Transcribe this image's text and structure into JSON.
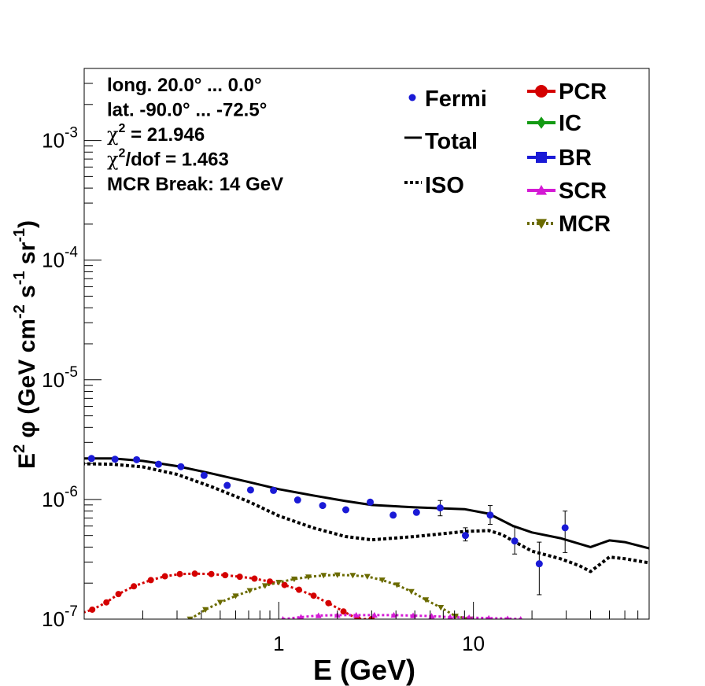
{
  "chart_data": {
    "type": "scatter",
    "xlabel": "E (GeV)",
    "ylabel_parts": [
      "E",
      "2",
      "φ (GeV cm",
      "-2",
      " s",
      "-1",
      " sr",
      "-1",
      ")"
    ],
    "xscale": "log",
    "yscale": "log",
    "xlim": [
      0.1,
      80
    ],
    "ylim": [
      1e-07,
      0.004
    ],
    "x_ticks": [
      {
        "value": 1,
        "label": "1"
      },
      {
        "value": 10,
        "label": "10"
      }
    ],
    "y_ticks": [
      {
        "value": 1e-07,
        "base": "10",
        "exp": "-7"
      },
      {
        "value": 1e-06,
        "base": "10",
        "exp": "-6"
      },
      {
        "value": 1e-05,
        "base": "10",
        "exp": "-5"
      },
      {
        "value": 0.0001,
        "base": "10",
        "exp": "-4"
      },
      {
        "value": 0.001,
        "base": "10",
        "exp": "-3"
      }
    ],
    "info": {
      "lines": [
        {
          "text": "long. 20.0° ... 0.0°"
        },
        {
          "text": "lat. -90.0° ... -72.5°"
        },
        {
          "sym": "χ",
          "sup": "2",
          "text": " = 21.946"
        },
        {
          "sym": "χ",
          "sup": "2",
          "text": "/dof = 1.463"
        },
        {
          "text": "MCR Break: 14 GeV"
        }
      ]
    },
    "legend": {
      "position": "top-right",
      "left": [
        {
          "name": "Fermi",
          "style": "point",
          "color": "#1a1ad6"
        },
        {
          "name": "Total",
          "style": "solid",
          "color": "#000000"
        },
        {
          "name": "ISO",
          "style": "dotted",
          "color": "#000000"
        }
      ],
      "right": [
        {
          "name": "PCR",
          "style": "circle",
          "color": "#d40000"
        },
        {
          "name": "IC",
          "style": "diamond",
          "color": "#139a13"
        },
        {
          "name": "BR",
          "style": "square",
          "color": "#1a1ad6"
        },
        {
          "name": "SCR",
          "style": "triangle-up",
          "color": "#d41ad4"
        },
        {
          "name": "MCR",
          "style": "triangle-down",
          "color": "#6b6b00"
        }
      ]
    },
    "fermi": {
      "color": "#1a1ad6",
      "points": [
        {
          "x": 0.109,
          "y": 2.2e-06
        },
        {
          "x": 0.144,
          "y": 2.17e-06
        },
        {
          "x": 0.186,
          "y": 2.15e-06
        },
        {
          "x": 0.241,
          "y": 1.97e-06
        },
        {
          "x": 0.314,
          "y": 1.88e-06
        },
        {
          "x": 0.413,
          "y": 1.59e-06
        },
        {
          "x": 0.543,
          "y": 1.31e-06
        },
        {
          "x": 0.716,
          "y": 1.2e-06
        },
        {
          "x": 0.939,
          "y": 1.19e-06
        },
        {
          "x": 1.25,
          "y": 9.9e-07
        },
        {
          "x": 1.68,
          "y": 8.9e-07
        },
        {
          "x": 2.21,
          "y": 8.2e-07
        },
        {
          "x": 2.95,
          "y": 9.5e-07
        },
        {
          "x": 3.87,
          "y": 7.4e-07
        },
        {
          "x": 5.1,
          "y": 7.8e-07
        },
        {
          "x": 6.75,
          "y": 8.5e-07,
          "err": [
            7.3e-07,
            9.8e-07
          ]
        },
        {
          "x": 9.1,
          "y": 5e-07,
          "err": [
            4.5e-07,
            5.8e-07
          ]
        },
        {
          "x": 12.2,
          "y": 7.4e-07,
          "err": [
            6.2e-07,
            8.9e-07
          ]
        },
        {
          "x": 16.3,
          "y": 4.5e-07,
          "err": [
            3.5e-07,
            5.9e-07
          ]
        },
        {
          "x": 21.8,
          "y": 2.9e-07,
          "err": [
            1.6e-07,
            4.4e-07
          ]
        },
        {
          "x": 29.6,
          "y": 5.8e-07,
          "err": [
            3.6e-07,
            8e-07
          ]
        }
      ]
    },
    "series": [
      {
        "name": "Total",
        "style": "solid",
        "color": "#000000",
        "x": [
          0.08,
          0.14,
          0.2,
          0.3,
          0.45,
          0.7,
          1.0,
          1.5,
          2.2,
          3.0,
          5.0,
          9.0,
          12.0,
          16.0,
          20.0,
          28.0,
          40.0,
          50.0,
          60.0,
          80.0
        ],
        "y": [
          2.2e-06,
          2.2e-06,
          2.1e-06,
          1.9e-06,
          1.65e-06,
          1.4e-06,
          1.22e-06,
          1.08e-06,
          9.7e-07,
          9e-07,
          8.6e-07,
          8.3e-07,
          7.6e-07,
          6e-07,
          5.3e-07,
          4.75e-07,
          4e-07,
          4.55e-07,
          4.4e-07,
          3.9e-07
        ]
      },
      {
        "name": "ISO",
        "style": "dotted",
        "color": "#000000",
        "x": [
          0.08,
          0.14,
          0.2,
          0.3,
          0.45,
          0.7,
          1.0,
          1.5,
          2.2,
          3.0,
          5.0,
          9.0,
          12.0,
          14.0,
          16.0,
          20.0,
          28.0,
          35.0,
          40.0,
          50.0,
          60.0,
          80.0
        ],
        "y": [
          2e-06,
          1.97e-06,
          1.87e-06,
          1.62e-06,
          1.28e-06,
          9.6e-07,
          7.3e-07,
          5.8e-07,
          4.9e-07,
          4.6e-07,
          4.9e-07,
          5.4e-07,
          5.5e-07,
          5.1e-07,
          4.5e-07,
          3.7e-07,
          3.2e-07,
          2.8e-07,
          2.5e-07,
          3.3e-07,
          3.2e-07,
          2.95e-07
        ]
      },
      {
        "name": "PCR",
        "style": "dotted-markers",
        "marker": "circle",
        "color": "#d40000",
        "x": [
          0.08,
          0.11,
          0.13,
          0.15,
          0.18,
          0.22,
          0.26,
          0.31,
          0.37,
          0.45,
          0.53,
          0.63,
          0.75,
          0.9,
          1.07,
          1.27,
          1.51,
          1.8,
          2.15,
          2.55,
          3.0
        ],
        "y": [
          1.02e-07,
          1.2e-07,
          1.38e-07,
          1.62e-07,
          1.88e-07,
          2.12e-07,
          2.28e-07,
          2.38e-07,
          2.4e-07,
          2.38e-07,
          2.33e-07,
          2.26e-07,
          2.18e-07,
          2.06e-07,
          1.93e-07,
          1.76e-07,
          1.57e-07,
          1.36e-07,
          1.16e-07,
          1e-07,
          1e-07
        ]
      },
      {
        "name": "MCR",
        "style": "dotted-markers",
        "marker": "triangle-down",
        "color": "#6b6b00",
        "x": [
          0.35,
          0.42,
          0.5,
          0.6,
          0.71,
          0.85,
          1.0,
          1.2,
          1.42,
          1.7,
          2.0,
          2.4,
          2.85,
          3.4,
          4.05,
          4.8,
          5.7,
          6.8,
          8.1,
          9.7
        ],
        "y": [
          1e-07,
          1.2e-07,
          1.38e-07,
          1.56e-07,
          1.73e-07,
          1.9e-07,
          2.03e-07,
          2.16e-07,
          2.25e-07,
          2.32e-07,
          2.34e-07,
          2.32e-07,
          2.27e-07,
          2.12e-07,
          1.93e-07,
          1.7e-07,
          1.45e-07,
          1.25e-07,
          1.06e-07,
          1e-07
        ]
      },
      {
        "name": "SCR",
        "style": "dotted-markers",
        "marker": "triangle-up",
        "color": "#d41ad4",
        "x": [
          1.05,
          1.3,
          1.6,
          2.0,
          2.5,
          3.1,
          3.9,
          4.9,
          6.1,
          7.6,
          9.5,
          12.0,
          15.0,
          17.5
        ],
        "y": [
          1e-07,
          1.04e-07,
          1.07e-07,
          1.08e-07,
          1.08e-07,
          1.08e-07,
          1.08e-07,
          1.07e-07,
          1.06e-07,
          1.04e-07,
          1.03e-07,
          1.02e-07,
          1.01e-07,
          1e-07
        ]
      }
    ]
  }
}
